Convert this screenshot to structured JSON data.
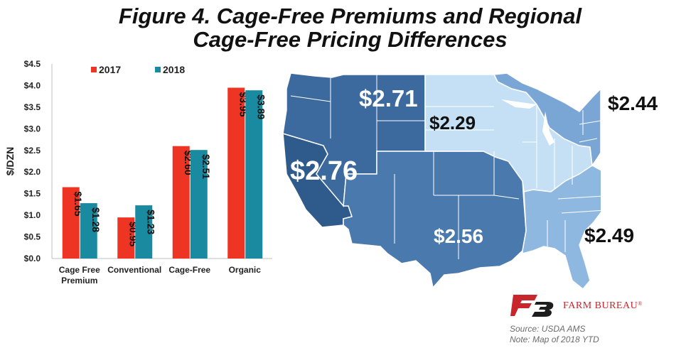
{
  "title_line1": "Figure 4. Cage-Free Premiums and Regional",
  "title_line2": "Cage-Free Pricing Differences",
  "chart_data": {
    "type": "bar",
    "ylabel": "$/DZN",
    "ylim": [
      0,
      4.5
    ],
    "yticks": [
      "$0.0",
      "$0.5",
      "$1.0",
      "$1.5",
      "$2.0",
      "$2.5",
      "$3.0",
      "$3.5",
      "$4.0",
      "$4.5"
    ],
    "categories": [
      "Cage Free Premium",
      "Conventional",
      "Cage-Free",
      "Organic"
    ],
    "category_lines": [
      [
        "Cage Free",
        "Premium"
      ],
      [
        "Conventional"
      ],
      [
        "Cage-Free"
      ],
      [
        "Organic"
      ]
    ],
    "series": [
      {
        "name": "2017",
        "color": "#ee3524",
        "values": [
          1.65,
          0.95,
          2.6,
          3.95
        ],
        "labels": [
          "$1.65",
          "$0.95",
          "$2.60",
          "$3.95"
        ]
      },
      {
        "name": "2018",
        "color": "#1a8aa0",
        "values": [
          1.28,
          1.23,
          2.51,
          3.89
        ],
        "labels": [
          "$1.28",
          "$1.23",
          "$2.51",
          "$3.89"
        ]
      }
    ],
    "legend_position": "top",
    "grid": false
  },
  "map": {
    "colors": {
      "pacific": "#2f5a8c",
      "northwest": "#3d6a9e",
      "southwest": "#4a79ad",
      "midwest": "#c5e0f4",
      "southeast": "#8fb8e0",
      "northeast": "#7aa6d5",
      "outline": "#ffffff"
    },
    "regions": [
      {
        "name": "California",
        "price": "$2.76"
      },
      {
        "name": "Northwest",
        "price": "$2.71"
      },
      {
        "name": "Southwest",
        "price": "$2.56"
      },
      {
        "name": "Midwest",
        "price": "$2.29"
      },
      {
        "name": "Southeast",
        "price": "$2.49"
      },
      {
        "name": "Northeast",
        "price": "$2.44"
      }
    ]
  },
  "logo_text": "FARM BUREAU",
  "source_line1": "Source: USDA AMS",
  "source_line2": "Note: Map of 2018 YTD"
}
